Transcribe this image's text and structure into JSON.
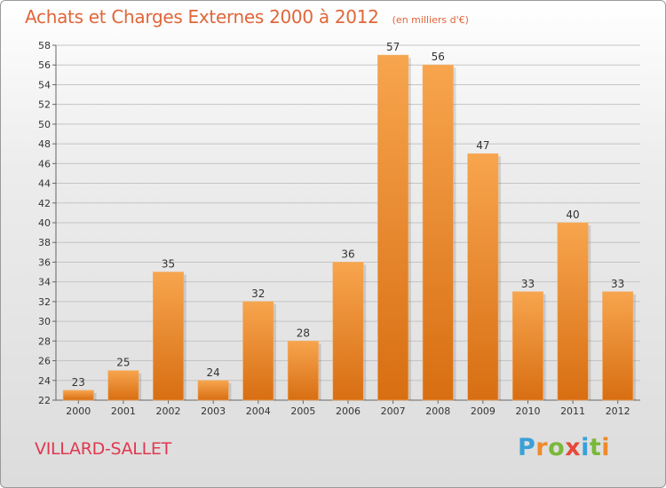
{
  "title": "Achats et Charges Externes 2000 à 2012",
  "subtitle": "(en milliers d'€)",
  "commune": "VILLARD-SALLET",
  "logo": {
    "text": "Proxiti",
    "letters": [
      "P",
      "r",
      "o",
      "x",
      "i",
      "t",
      "i"
    ],
    "colors": [
      "#3aa0d8",
      "#ef8a2a",
      "#7ab83a",
      "#e5493a",
      "#3aa0d8",
      "#7ab83a",
      "#ef8a2a"
    ]
  },
  "colors": {
    "bar_light": "#f7a54e",
    "bar_dark": "#d86e12",
    "accent": "#e0663a",
    "commune": "#e0384f"
  },
  "chart_data": {
    "type": "bar",
    "categories": [
      "2000",
      "2001",
      "2002",
      "2003",
      "2004",
      "2005",
      "2006",
      "2007",
      "2008",
      "2009",
      "2010",
      "2011",
      "2012"
    ],
    "values": [
      23,
      25,
      35,
      24,
      32,
      28,
      36,
      57,
      56,
      47,
      33,
      40,
      33
    ],
    "title": "Achats et Charges Externes 2000 à 2012",
    "subtitle": "(en milliers d'€)",
    "xlabel": "",
    "ylabel": "",
    "ylim": [
      22,
      58
    ],
    "yticks": [
      22,
      24,
      26,
      28,
      30,
      32,
      34,
      36,
      38,
      40,
      42,
      44,
      46,
      48,
      50,
      52,
      54,
      56,
      58
    ],
    "grid": true
  }
}
